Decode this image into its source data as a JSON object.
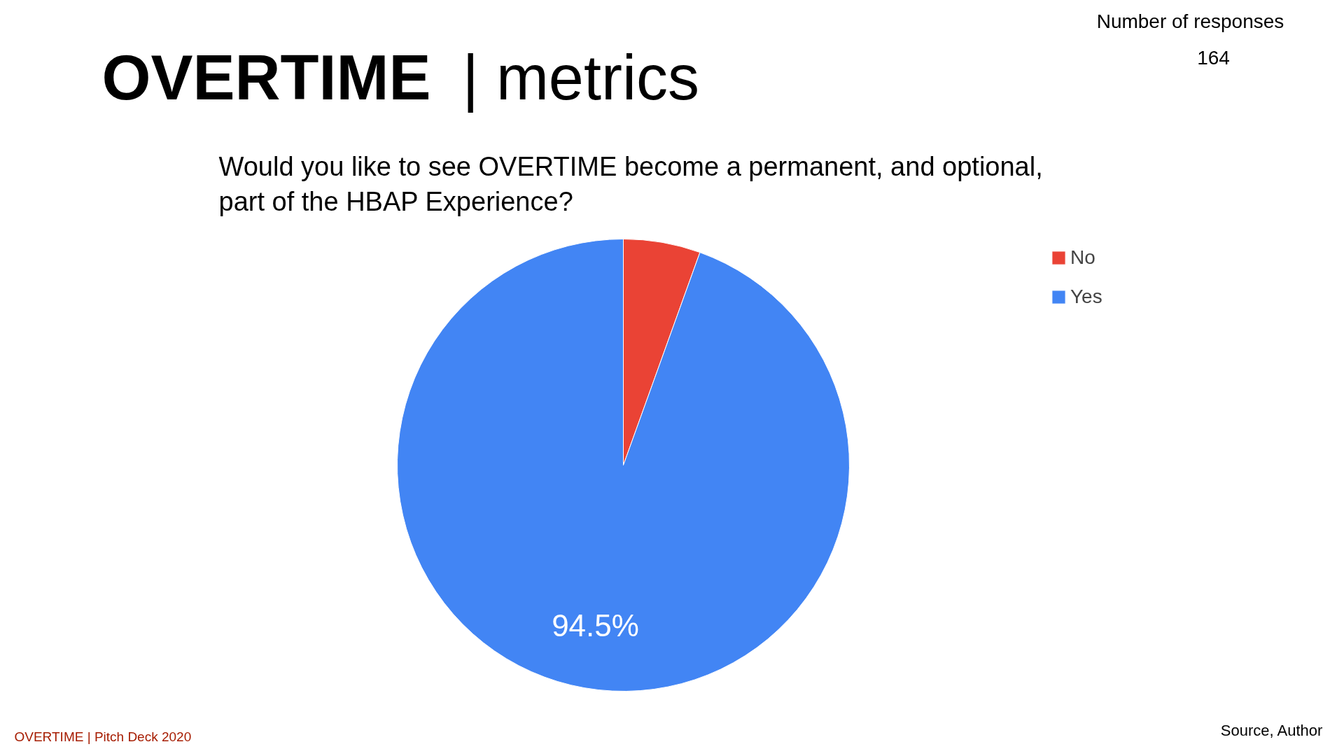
{
  "chart_data": {
    "type": "pie",
    "title": "OVERTIME | metrics",
    "subtitle": "Would you like to see OVERTIME become a permanent, and optional, part of the HBAP Experience?",
    "categories": [
      "No",
      "Yes"
    ],
    "values": [
      5.5,
      94.5
    ],
    "colors": [
      "#ea4335",
      "#4285f4"
    ],
    "value_labels": [
      null,
      "94.5%"
    ],
    "legend": "top right",
    "annotations": [
      "Number of responses",
      "164",
      "Source, Author",
      "OVERTIME |  Pitch Deck 2020"
    ]
  }
}
